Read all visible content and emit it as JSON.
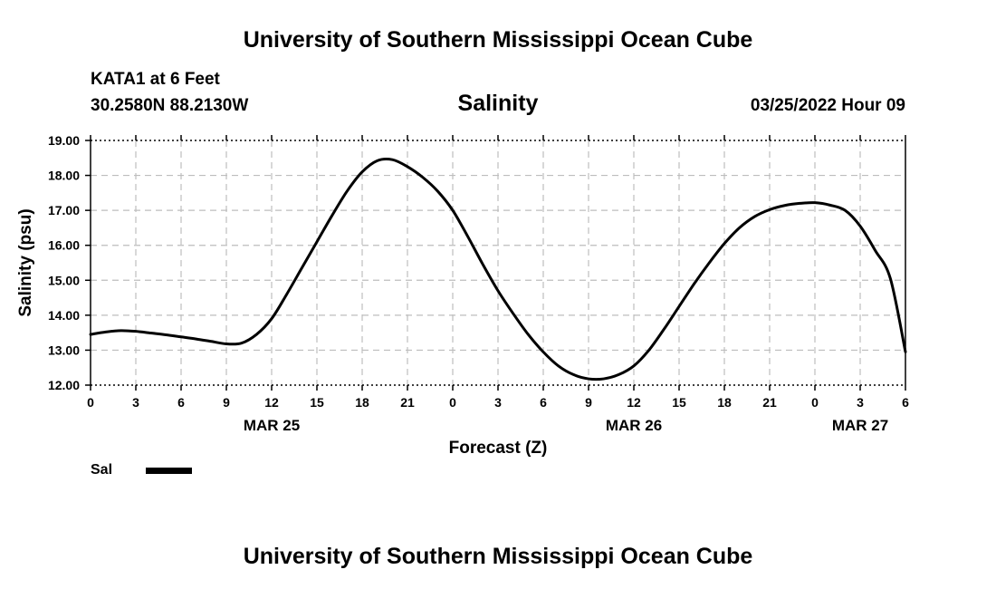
{
  "header": {
    "title": "University of Southern Mississippi Ocean Cube",
    "station": "KATA1 at 6 Feet",
    "coords": "30.2580N  88.2130W",
    "subtitle": "Salinity",
    "timestamp": "03/25/2022 Hour 09"
  },
  "footer": {
    "title": "University of Southern Mississippi Ocean Cube"
  },
  "legend": {
    "label": "Sal",
    "color": "#000000"
  },
  "chart_data": {
    "type": "line",
    "title": "Salinity",
    "xlabel": "Forecast (Z)",
    "ylabel": "Salinity (psu)",
    "xlim": [
      0,
      54
    ],
    "ylim": [
      12.0,
      19.0
    ],
    "y_ticks": [
      "12.00",
      "13.00",
      "14.00",
      "15.00",
      "16.00",
      "17.00",
      "18.00",
      "19.00"
    ],
    "x_ticks": [
      "0",
      "3",
      "6",
      "9",
      "12",
      "15",
      "18",
      "21",
      "0",
      "3",
      "6",
      "9",
      "12",
      "15",
      "18",
      "21",
      "0",
      "3",
      "6"
    ],
    "date_labels": [
      {
        "label": "MAR 25",
        "x": 12
      },
      {
        "label": "MAR 26",
        "x": 36
      },
      {
        "label": "MAR 27",
        "x": 51
      }
    ],
    "grid": true,
    "legend_position": "bottom-left",
    "series": [
      {
        "name": "Sal",
        "x": [
          0,
          1,
          2,
          3,
          4,
          5,
          6,
          7,
          8,
          9,
          10,
          11,
          12,
          13,
          14,
          15,
          16,
          17,
          18,
          19,
          20,
          21,
          22,
          23,
          24,
          25,
          26,
          27,
          28,
          29,
          30,
          31,
          32,
          33,
          34,
          35,
          36,
          37,
          38,
          39,
          40,
          41,
          42,
          43,
          44,
          45,
          46,
          47,
          48,
          49,
          50,
          51,
          52,
          53,
          54
        ],
        "values": [
          13.45,
          13.52,
          13.56,
          13.54,
          13.49,
          13.44,
          13.38,
          13.32,
          13.25,
          13.18,
          13.2,
          13.45,
          13.9,
          14.6,
          15.35,
          16.1,
          16.85,
          17.55,
          18.1,
          18.42,
          18.45,
          18.25,
          17.95,
          17.55,
          17.0,
          16.25,
          15.45,
          14.7,
          14.05,
          13.45,
          12.95,
          12.55,
          12.3,
          12.18,
          12.18,
          12.3,
          12.55,
          13.0,
          13.6,
          14.25,
          14.9,
          15.5,
          16.05,
          16.5,
          16.82,
          17.02,
          17.14,
          17.2,
          17.22,
          17.15,
          17.0,
          16.55,
          15.85,
          15.05,
          12.95
        ]
      }
    ]
  }
}
